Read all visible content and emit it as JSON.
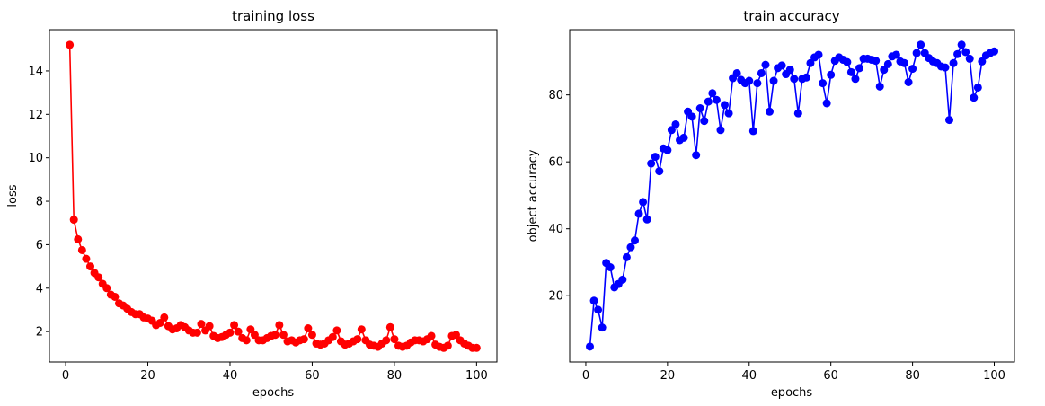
{
  "chart_data": [
    {
      "type": "line",
      "title": "training loss",
      "xlabel": "epochs",
      "ylabel": "loss",
      "xlim": [
        -3.95,
        104.95
      ],
      "ylim": [
        0.6,
        15.9
      ],
      "xticks": [
        0,
        20,
        40,
        60,
        80,
        100
      ],
      "yticks": [
        2,
        4,
        6,
        8,
        10,
        12,
        14
      ],
      "grid": false,
      "marker": "circle",
      "series": [
        {
          "color": "#ff0000",
          "x": [
            1,
            2,
            3,
            4,
            5,
            6,
            7,
            8,
            9,
            10,
            11,
            12,
            13,
            14,
            15,
            16,
            17,
            18,
            19,
            20,
            21,
            22,
            23,
            24,
            25,
            26,
            27,
            28,
            29,
            30,
            31,
            32,
            33,
            34,
            35,
            36,
            37,
            38,
            39,
            40,
            41,
            42,
            43,
            44,
            45,
            46,
            47,
            48,
            49,
            50,
            51,
            52,
            53,
            54,
            55,
            56,
            57,
            58,
            59,
            60,
            61,
            62,
            63,
            64,
            65,
            66,
            67,
            68,
            69,
            70,
            71,
            72,
            73,
            74,
            75,
            76,
            77,
            78,
            79,
            80,
            81,
            82,
            83,
            84,
            85,
            86,
            87,
            88,
            89,
            90,
            91,
            92,
            93,
            94,
            95,
            96,
            97,
            98,
            99,
            100
          ],
          "y": [
            15.2,
            7.15,
            6.25,
            5.75,
            5.35,
            5.0,
            4.7,
            4.5,
            4.2,
            4.0,
            3.7,
            3.6,
            3.3,
            3.2,
            3.05,
            2.9,
            2.8,
            2.8,
            2.65,
            2.6,
            2.5,
            2.3,
            2.4,
            2.65,
            2.25,
            2.1,
            2.15,
            2.3,
            2.2,
            2.05,
            1.95,
            1.95,
            2.35,
            2.05,
            2.25,
            1.8,
            1.7,
            1.75,
            1.85,
            1.95,
            2.3,
            2.0,
            1.7,
            1.6,
            2.1,
            1.85,
            1.6,
            1.6,
            1.7,
            1.8,
            1.85,
            2.3,
            1.85,
            1.55,
            1.6,
            1.5,
            1.6,
            1.65,
            2.15,
            1.85,
            1.45,
            1.4,
            1.45,
            1.6,
            1.75,
            2.05,
            1.55,
            1.4,
            1.45,
            1.55,
            1.65,
            2.1,
            1.6,
            1.4,
            1.35,
            1.3,
            1.45,
            1.6,
            2.2,
            1.65,
            1.35,
            1.3,
            1.35,
            1.5,
            1.6,
            1.6,
            1.55,
            1.65,
            1.8,
            1.4,
            1.3,
            1.25,
            1.35,
            1.8,
            1.85,
            1.6,
            1.45,
            1.35,
            1.25,
            1.25
          ]
        }
      ]
    },
    {
      "type": "line",
      "title": "train accuracy",
      "xlabel": "epochs",
      "ylabel": "object accuracy",
      "xlim": [
        -3.95,
        104.95
      ],
      "ylim": [
        0.2,
        99.5
      ],
      "xticks": [
        0,
        20,
        40,
        60,
        80,
        100
      ],
      "yticks": [
        20,
        40,
        60,
        80
      ],
      "grid": false,
      "marker": "circle",
      "series": [
        {
          "color": "#0000ff",
          "x": [
            1,
            2,
            3,
            4,
            5,
            6,
            7,
            8,
            9,
            10,
            11,
            12,
            13,
            14,
            15,
            16,
            17,
            18,
            19,
            20,
            21,
            22,
            23,
            24,
            25,
            26,
            27,
            28,
            29,
            30,
            31,
            32,
            33,
            34,
            35,
            36,
            37,
            38,
            39,
            40,
            41,
            42,
            43,
            44,
            45,
            46,
            47,
            48,
            49,
            50,
            51,
            52,
            53,
            54,
            55,
            56,
            57,
            58,
            59,
            60,
            61,
            62,
            63,
            64,
            65,
            66,
            67,
            68,
            69,
            70,
            71,
            72,
            73,
            74,
            75,
            76,
            77,
            78,
            79,
            80,
            81,
            82,
            83,
            84,
            85,
            86,
            87,
            88,
            89,
            90,
            91,
            92,
            93,
            94,
            95,
            96,
            97,
            98,
            99,
            100
          ],
          "y": [
            4.8,
            18.5,
            15.8,
            10.5,
            29.8,
            28.5,
            22.5,
            23.5,
            24.8,
            31.5,
            34.5,
            36.5,
            44.5,
            48.0,
            42.8,
            59.5,
            61.5,
            57.2,
            64.0,
            63.5,
            69.5,
            71.2,
            66.5,
            67.2,
            75.0,
            73.5,
            62.0,
            76.0,
            72.2,
            78.0,
            80.5,
            78.5,
            69.5,
            77.0,
            74.5,
            85.0,
            86.5,
            84.5,
            83.5,
            84.2,
            69.2,
            83.5,
            86.5,
            89.0,
            75.0,
            84.2,
            88.0,
            88.8,
            86.2,
            87.5,
            84.8,
            74.5,
            84.8,
            85.2,
            89.5,
            91.2,
            92.0,
            83.5,
            77.5,
            86.0,
            90.2,
            91.2,
            90.5,
            89.8,
            86.8,
            84.8,
            88.0,
            90.8,
            90.8,
            90.5,
            90.2,
            82.5,
            87.5,
            89.2,
            91.5,
            92.0,
            90.0,
            89.5,
            83.8,
            87.8,
            92.5,
            95.0,
            92.5,
            91.0,
            90.0,
            89.5,
            88.5,
            88.2,
            72.5,
            89.5,
            92.2,
            95.0,
            92.8,
            90.8,
            79.2,
            82.2,
            90.0,
            91.8,
            92.5,
            93.0
          ]
        }
      ]
    }
  ]
}
